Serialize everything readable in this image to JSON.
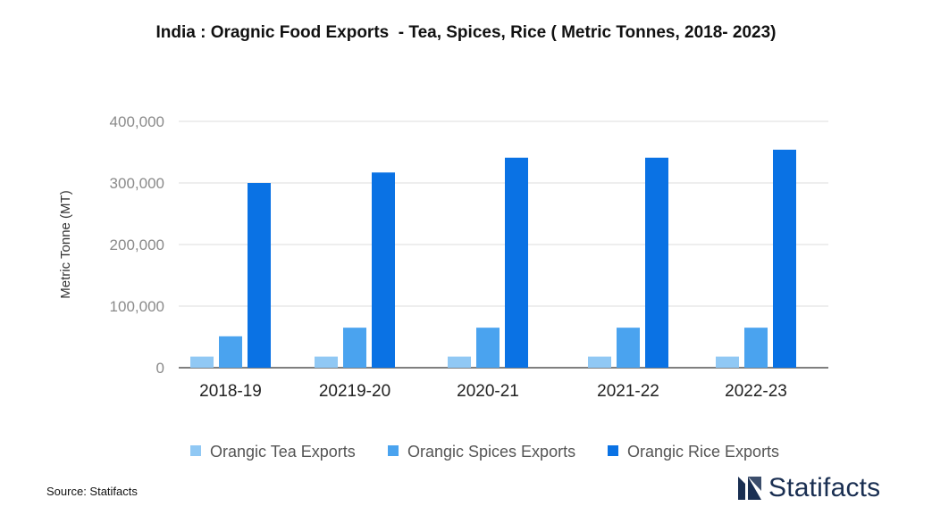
{
  "title": "India : Oragnic Food Exports  - Tea, Spices, Rice ( Metric Tonnes, 2018- 2023)",
  "source": "Source: Statifacts",
  "brand": "Statifacts",
  "colors": {
    "tea": "#90c8f4",
    "spices": "#4aa3ef",
    "rice": "#0a72e4",
    "grid": "#dcdcdc",
    "axis": "#333333"
  },
  "chart_data": {
    "type": "bar",
    "categories": [
      "2018-19",
      "20219-20",
      "2020-21",
      "2021-22",
      "2022-23"
    ],
    "series": [
      {
        "name": "Orangic Tea Exports",
        "values": [
          18000,
          18000,
          18000,
          18000,
          18000
        ]
      },
      {
        "name": "Orangic Spices Exports",
        "values": [
          51000,
          65000,
          65000,
          65000,
          65000
        ]
      },
      {
        "name": "Orangic Rice Exports",
        "values": [
          300000,
          317000,
          341000,
          341000,
          354000
        ]
      }
    ],
    "ylabel": "Metric Tonne (MT)",
    "ylim": [
      0,
      400000
    ],
    "yticks": [
      "0",
      "100,000",
      "200,000",
      "300,000",
      "400,000"
    ],
    "grid": true,
    "legend": "bottom"
  }
}
